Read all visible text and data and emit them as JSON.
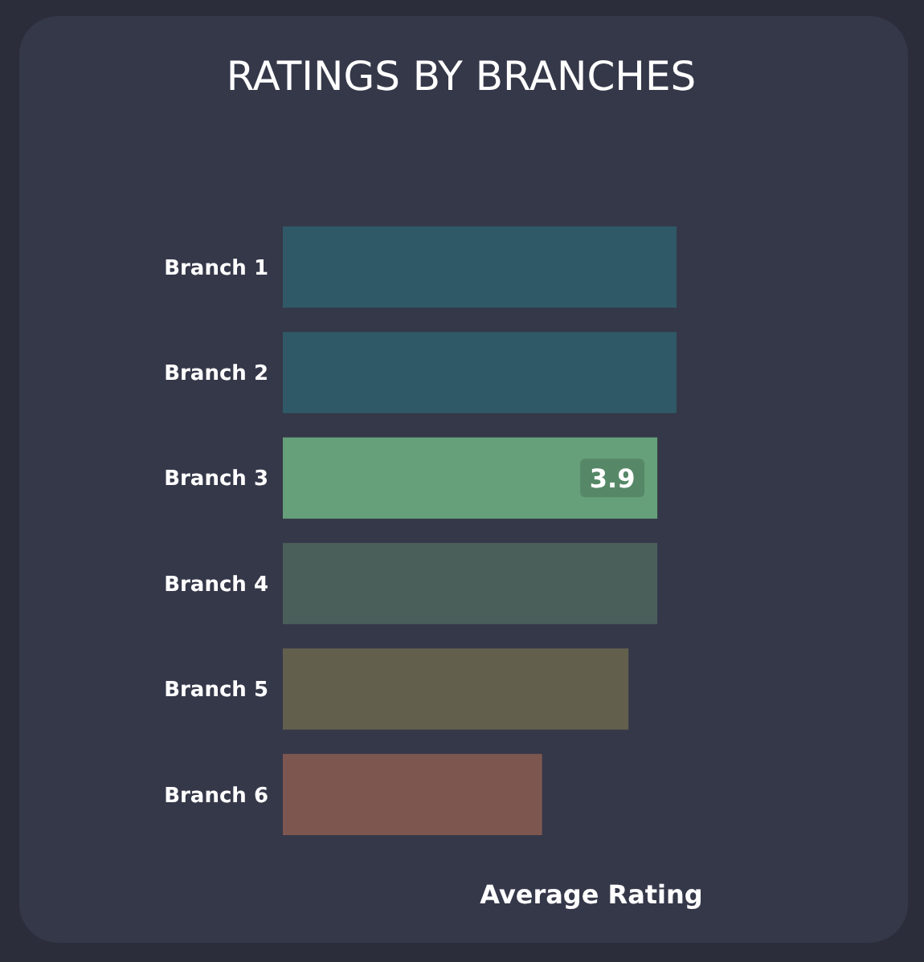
{
  "chart_data": {
    "type": "bar",
    "orientation": "horizontal",
    "title": "RATINGS BY BRANCHES",
    "xlabel": "Average Rating",
    "categories": [
      "Branch 1",
      "Branch 2",
      "Branch 3",
      "Branch 4",
      "Branch 5",
      "Branch 6"
    ],
    "values": [
      4.1,
      4.1,
      3.9,
      3.9,
      3.6,
      2.7
    ],
    "colors": [
      "#2f5966",
      "#2f5966",
      "#66a07a",
      "#4a5e5a",
      "#625f4d",
      "#7d564f"
    ],
    "value_labels": [
      null,
      null,
      "3.9",
      null,
      null,
      null
    ]
  }
}
